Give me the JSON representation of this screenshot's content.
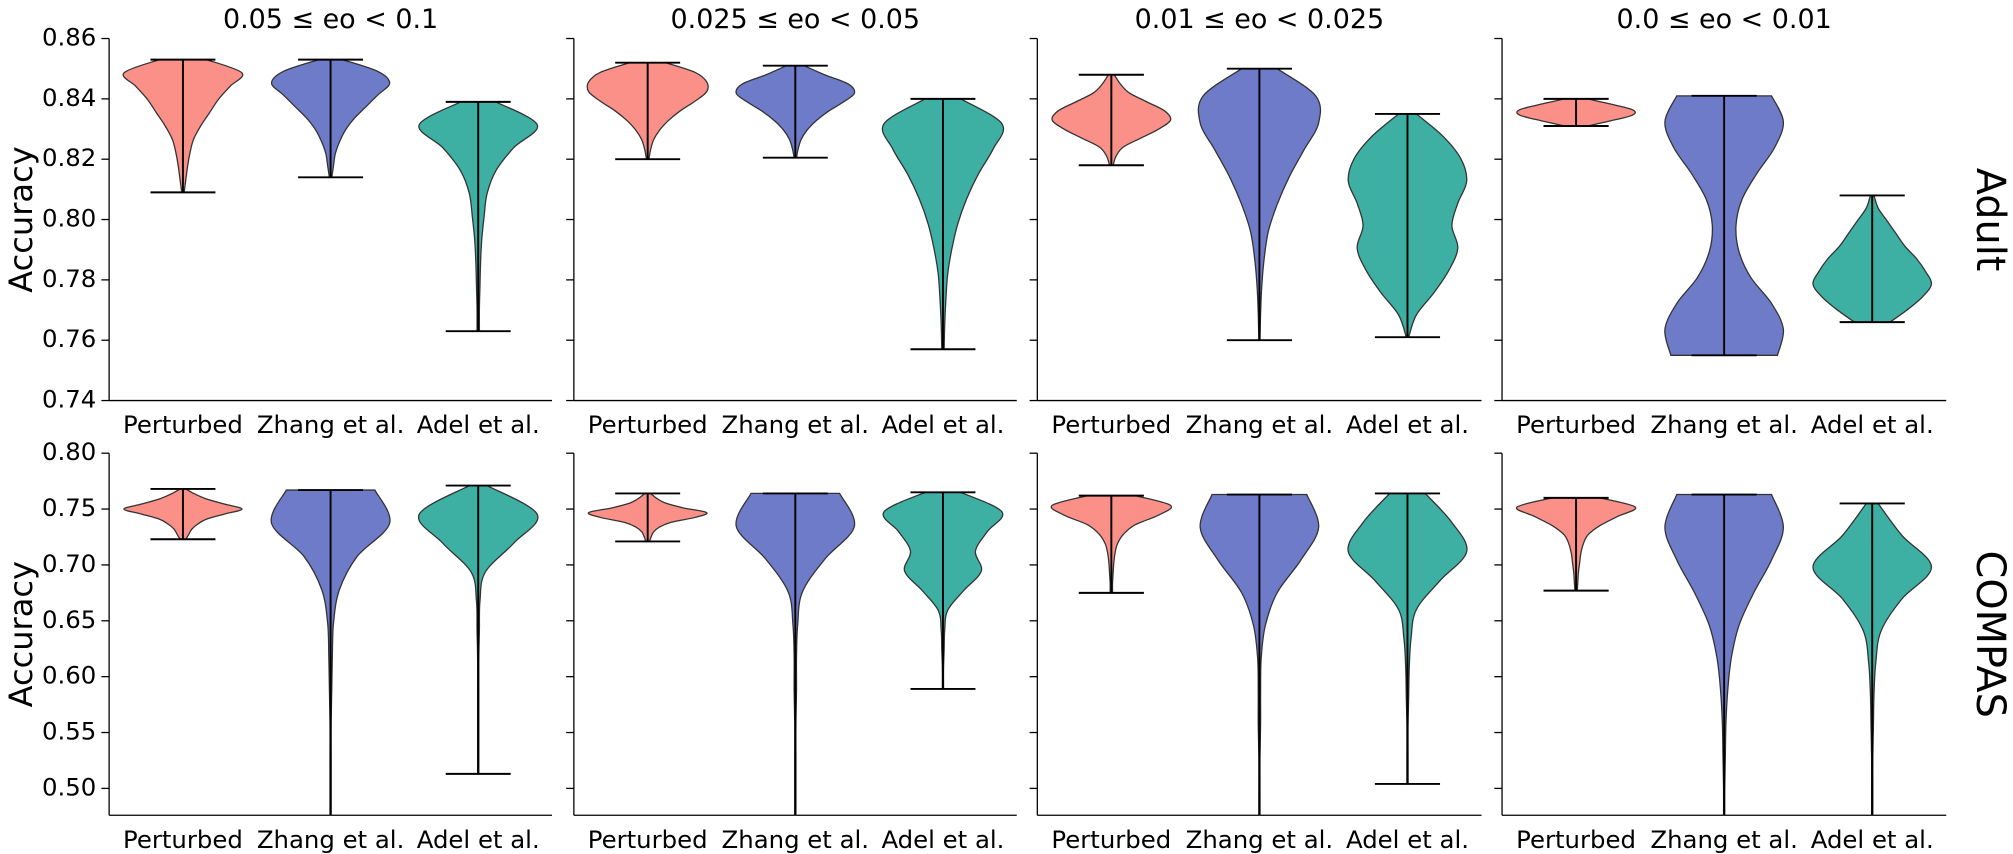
{
  "chart_data": [
    {
      "type": "violin",
      "title": "0.05 ≤ eo < 0.1",
      "ylabel": "Accuracy",
      "show_ytick_labels": true,
      "categories": [
        "Perturbed",
        "Zhang et al.",
        "Adel et al."
      ],
      "ylim": [
        0.74,
        0.86
      ],
      "yticks": [
        0.74,
        0.76,
        0.78,
        {
          "value": 0.8,
          "label": "0.80"
        },
        0.82,
        0.84,
        0.86
      ],
      "violins": [
        {
          "color": "#fa9088",
          "min": 0.809,
          "max": 0.853,
          "density": [
            0.02,
            0.05,
            0.08,
            0.12,
            0.18,
            0.3,
            0.45,
            0.6,
            0.8,
            1,
            0.4
          ]
        },
        {
          "color": "#6d7bc8",
          "min": 0.814,
          "max": 0.853,
          "density": [
            0.02,
            0.05,
            0.08,
            0.15,
            0.25,
            0.4,
            0.6,
            0.8,
            1,
            0.8,
            0.2
          ]
        },
        {
          "color": "#3eafa3",
          "min": 0.763,
          "max": 0.839,
          "density": [
            0.02,
            0.02,
            0.03,
            0.04,
            0.06,
            0.1,
            0.15,
            0.3,
            0.6,
            1,
            0.3
          ]
        }
      ]
    },
    {
      "type": "violin",
      "title": "0.025 ≤ eo < 0.05",
      "show_ytick_labels": false,
      "categories": [
        "Perturbed",
        "Zhang et al.",
        "Adel et al."
      ],
      "ylim": [
        0.74,
        0.86
      ],
      "yticks": [
        0.74,
        0.76,
        0.78,
        0.8,
        0.82,
        0.84,
        0.86
      ],
      "violins": [
        {
          "color": "#fa9088",
          "min": 0.82,
          "max": 0.852,
          "density": [
            0.02,
            0.05,
            0.1,
            0.2,
            0.35,
            0.55,
            0.8,
            1,
            1,
            0.8,
            0.3
          ]
        },
        {
          "color": "#6d7bc8",
          "min": 0.8205,
          "max": 0.851,
          "density": [
            0.02,
            0.05,
            0.1,
            0.2,
            0.35,
            0.55,
            0.8,
            1,
            0.9,
            0.5,
            0.15
          ]
        },
        {
          "color": "#3eafa3",
          "min": 0.757,
          "max": 0.84,
          "density": [
            0.02,
            0.03,
            0.05,
            0.08,
            0.15,
            0.25,
            0.4,
            0.6,
            0.85,
            1,
            0.3
          ]
        }
      ]
    },
    {
      "type": "violin",
      "title": "0.01 ≤ eo < 0.025",
      "show_ytick_labels": false,
      "categories": [
        "Perturbed",
        "Zhang et al.",
        "Adel et al."
      ],
      "ylim": [
        0.74,
        0.86
      ],
      "yticks": [
        0.74,
        0.76,
        0.78,
        0.8,
        0.82,
        0.84,
        0.86
      ],
      "violins": [
        {
          "color": "#fa9088",
          "min": 0.818,
          "max": 0.848,
          "density": [
            0.03,
            0.08,
            0.2,
            0.5,
            0.8,
            1,
            0.9,
            0.6,
            0.3,
            0.15,
            0.05
          ]
        },
        {
          "color": "#6d7bc8",
          "min": 0.76,
          "max": 0.85,
          "density": [
            0.01,
            0.02,
            0.04,
            0.08,
            0.15,
            0.3,
            0.5,
            0.75,
            1,
            0.95,
            0.3
          ]
        },
        {
          "color": "#3eafa3",
          "min": 0.761,
          "max": 0.835,
          "density": [
            0.02,
            0.15,
            0.45,
            0.7,
            0.85,
            0.75,
            0.85,
            1,
            0.9,
            0.6,
            0.15
          ]
        }
      ]
    },
    {
      "type": "violin",
      "title": "0.0 ≤ eo < 0.01",
      "row_label": "Adult",
      "show_ytick_labels": false,
      "categories": [
        "Perturbed",
        "Zhang et al.",
        "Adel et al."
      ],
      "ylim": [
        0.74,
        0.86
      ],
      "yticks": [
        0.74,
        0.76,
        0.78,
        0.8,
        0.82,
        0.84,
        0.86
      ],
      "violins": [
        {
          "color": "#fa9088",
          "min": 0.831,
          "max": 0.84,
          "density": [
            0.2,
            0.4,
            0.6,
            0.8,
            0.95,
            1,
            0.95,
            0.8,
            0.6,
            0.4,
            0.2
          ]
        },
        {
          "color": "#6d7bc8",
          "min": 0.755,
          "max": 0.841,
          "density": [
            0.9,
            1,
            0.8,
            0.45,
            0.25,
            0.2,
            0.3,
            0.55,
            0.85,
            1,
            0.8
          ]
        },
        {
          "color": "#3eafa3",
          "min": 0.766,
          "max": 0.808,
          "density": [
            0.3,
            0.6,
            0.85,
            1,
            0.9,
            0.75,
            0.55,
            0.4,
            0.25,
            0.1,
            0.03
          ]
        }
      ]
    },
    {
      "type": "violin",
      "ylabel": "Accuracy",
      "show_ytick_labels": true,
      "categories": [
        "Perturbed",
        "Zhang et al.",
        "Adel et al."
      ],
      "ylim": [
        0.476,
        0.8
      ],
      "yticks": [
        {
          "value": 0.5,
          "label": "0.50"
        },
        0.55,
        {
          "value": 0.6,
          "label": "0.60"
        },
        0.65,
        {
          "value": 0.7,
          "label": "0.70"
        },
        0.75,
        {
          "value": 0.8,
          "label": "0.80"
        }
      ],
      "violins": [
        {
          "color": "#fa9088",
          "min": 0.723,
          "max": 0.768,
          "density": [
            0.05,
            0.1,
            0.15,
            0.25,
            0.4,
            0.7,
            1,
            0.7,
            0.4,
            0.2,
            0.05
          ]
        },
        {
          "color": "#6d7bc8",
          "min": 0.47,
          "max": 0.767,
          "density": [
            0.01,
            0.01,
            0.01,
            0.01,
            0.02,
            0.03,
            0.05,
            0.15,
            0.45,
            1,
            0.75
          ]
        },
        {
          "color": "#3eafa3",
          "min": 0.513,
          "max": 0.771,
          "density": [
            0.01,
            0.01,
            0.01,
            0.01,
            0.01,
            0.02,
            0.03,
            0.12,
            0.6,
            1,
            0.15
          ]
        }
      ]
    },
    {
      "type": "violin",
      "show_ytick_labels": false,
      "categories": [
        "Perturbed",
        "Zhang et al.",
        "Adel et al."
      ],
      "ylim": [
        0.476,
        0.8
      ],
      "yticks": [
        0.5,
        0.55,
        0.6,
        0.65,
        0.7,
        0.75,
        0.8
      ],
      "violins": [
        {
          "color": "#fa9088",
          "min": 0.721,
          "max": 0.764,
          "density": [
            0.03,
            0.06,
            0.1,
            0.2,
            0.4,
            0.8,
            1,
            0.6,
            0.3,
            0.15,
            0.05
          ]
        },
        {
          "color": "#6d7bc8",
          "min": 0.47,
          "max": 0.764,
          "density": [
            0.01,
            0.01,
            0.01,
            0.01,
            0.02,
            0.02,
            0.04,
            0.12,
            0.5,
            1,
            0.75
          ]
        },
        {
          "color": "#3eafa3",
          "min": 0.589,
          "max": 0.765,
          "density": [
            0.01,
            0.01,
            0.02,
            0.03,
            0.08,
            0.35,
            0.65,
            0.55,
            0.75,
            1,
            0.3
          ]
        }
      ]
    },
    {
      "type": "violin",
      "show_ytick_labels": false,
      "categories": [
        "Perturbed",
        "Zhang et al.",
        "Adel et al."
      ],
      "ylim": [
        0.476,
        0.8
      ],
      "yticks": [
        0.5,
        0.55,
        0.6,
        0.65,
        0.7,
        0.75,
        0.8
      ],
      "violins": [
        {
          "color": "#fa9088",
          "min": 0.675,
          "max": 0.762,
          "density": [
            0.02,
            0.02,
            0.03,
            0.04,
            0.06,
            0.1,
            0.2,
            0.4,
            0.8,
            1,
            0.4
          ]
        },
        {
          "color": "#6d7bc8",
          "min": 0.47,
          "max": 0.763,
          "density": [
            0.01,
            0.01,
            0.01,
            0.02,
            0.02,
            0.03,
            0.1,
            0.3,
            0.7,
            1,
            0.8
          ]
        },
        {
          "color": "#3eafa3",
          "min": 0.504,
          "max": 0.764,
          "density": [
            0.01,
            0.01,
            0.01,
            0.02,
            0.03,
            0.06,
            0.15,
            0.55,
            1,
            0.75,
            0.3
          ]
        }
      ]
    },
    {
      "type": "violin",
      "row_label": "COMPAS",
      "show_ytick_labels": false,
      "categories": [
        "Perturbed",
        "Zhang et al.",
        "Adel et al."
      ],
      "ylim": [
        0.476,
        0.8
      ],
      "yticks": [
        0.5,
        0.55,
        0.6,
        0.65,
        0.7,
        0.75,
        0.8
      ],
      "violins": [
        {
          "color": "#fa9088",
          "min": 0.677,
          "max": 0.76,
          "density": [
            0.02,
            0.03,
            0.04,
            0.06,
            0.08,
            0.12,
            0.2,
            0.4,
            0.7,
            1,
            0.4
          ]
        },
        {
          "color": "#6d7bc8",
          "min": 0.47,
          "max": 0.763,
          "density": [
            0.01,
            0.01,
            0.02,
            0.03,
            0.06,
            0.12,
            0.25,
            0.5,
            0.8,
            1,
            0.8
          ]
        },
        {
          "color": "#3eafa3",
          "min": 0.47,
          "max": 0.755,
          "density": [
            0.01,
            0.01,
            0.01,
            0.02,
            0.03,
            0.06,
            0.15,
            0.5,
            1,
            0.5,
            0.1
          ]
        }
      ]
    }
  ]
}
